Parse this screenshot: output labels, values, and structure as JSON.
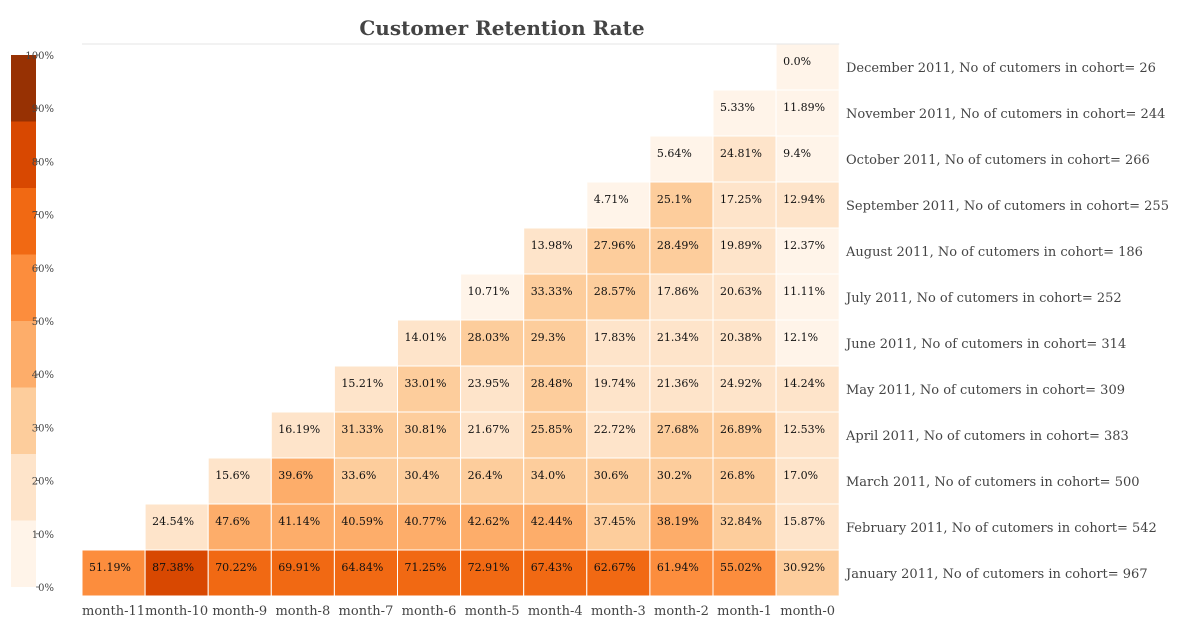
{
  "chart_data": {
    "type": "heatmap",
    "title": "Customer Retention Rate",
    "columns": [
      "month-11",
      "month-10",
      "month-9",
      "month-8",
      "month-7",
      "month-6",
      "month-5",
      "month-4",
      "month-3",
      "month-2",
      "month-1",
      "month-0"
    ],
    "rows": [
      "December 2011, No of cutomers in cohort= 26",
      "November 2011, No of cutomers in cohort= 244",
      "October 2011, No of cutomers in cohort= 266",
      "September 2011, No of cutomers in cohort= 255",
      "August 2011, No of cutomers in cohort= 186",
      "July 2011, No of cutomers in cohort= 252",
      "June 2011, No of cutomers in cohort= 314",
      "May 2011, No of cutomers in cohort= 309",
      "April 2011, No of cutomers in cohort= 383",
      "March 2011, No of cutomers in cohort= 500",
      "February 2011, No of cutomers in cohort= 542",
      "January 2011, No of cutomers in cohort= 967"
    ],
    "values": [
      [
        null,
        null,
        null,
        null,
        null,
        null,
        null,
        null,
        null,
        null,
        null,
        0.0
      ],
      [
        null,
        null,
        null,
        null,
        null,
        null,
        null,
        null,
        null,
        null,
        5.33,
        11.89
      ],
      [
        null,
        null,
        null,
        null,
        null,
        null,
        null,
        null,
        null,
        5.64,
        24.81,
        9.4
      ],
      [
        null,
        null,
        null,
        null,
        null,
        null,
        null,
        null,
        4.71,
        25.1,
        17.25,
        12.94
      ],
      [
        null,
        null,
        null,
        null,
        null,
        null,
        null,
        13.98,
        27.96,
        28.49,
        19.89,
        12.37
      ],
      [
        null,
        null,
        null,
        null,
        null,
        null,
        10.71,
        33.33,
        28.57,
        17.86,
        20.63,
        11.11
      ],
      [
        null,
        null,
        null,
        null,
        null,
        14.01,
        28.03,
        29.3,
        17.83,
        21.34,
        20.38,
        12.1
      ],
      [
        null,
        null,
        null,
        null,
        15.21,
        33.01,
        23.95,
        28.48,
        19.74,
        21.36,
        24.92,
        14.24
      ],
      [
        null,
        null,
        null,
        16.19,
        31.33,
        30.81,
        21.67,
        25.85,
        22.72,
        27.68,
        26.89,
        12.53
      ],
      [
        null,
        null,
        15.6,
        39.6,
        33.6,
        30.4,
        26.4,
        34.0,
        30.6,
        30.2,
        26.8,
        17.0
      ],
      [
        null,
        24.54,
        47.6,
        41.14,
        40.59,
        40.77,
        42.62,
        42.44,
        37.45,
        38.19,
        32.84,
        15.87
      ],
      [
        51.19,
        87.38,
        70.22,
        69.91,
        64.84,
        71.25,
        72.91,
        67.43,
        62.67,
        61.94,
        55.02,
        30.92
      ]
    ],
    "cell_labels": [
      [
        null,
        null,
        null,
        null,
        null,
        null,
        null,
        null,
        null,
        null,
        null,
        "0.0%"
      ],
      [
        null,
        null,
        null,
        null,
        null,
        null,
        null,
        null,
        null,
        null,
        "5.33%",
        "11.89%"
      ],
      [
        null,
        null,
        null,
        null,
        null,
        null,
        null,
        null,
        null,
        "5.64%",
        "24.81%",
        "9.4%"
      ],
      [
        null,
        null,
        null,
        null,
        null,
        null,
        null,
        null,
        "4.71%",
        "25.1%",
        "17.25%",
        "12.94%"
      ],
      [
        null,
        null,
        null,
        null,
        null,
        null,
        null,
        "13.98%",
        "27.96%",
        "28.49%",
        "19.89%",
        "12.37%"
      ],
      [
        null,
        null,
        null,
        null,
        null,
        null,
        "10.71%",
        "33.33%",
        "28.57%",
        "17.86%",
        "20.63%",
        "11.11%"
      ],
      [
        null,
        null,
        null,
        null,
        null,
        "14.01%",
        "28.03%",
        "29.3%",
        "17.83%",
        "21.34%",
        "20.38%",
        "12.1%"
      ],
      [
        null,
        null,
        null,
        null,
        "15.21%",
        "33.01%",
        "23.95%",
        "28.48%",
        "19.74%",
        "21.36%",
        "24.92%",
        "14.24%"
      ],
      [
        null,
        null,
        null,
        "16.19%",
        "31.33%",
        "30.81%",
        "21.67%",
        "25.85%",
        "22.72%",
        "27.68%",
        "26.89%",
        "12.53%"
      ],
      [
        null,
        null,
        "15.6%",
        "39.6%",
        "33.6%",
        "30.4%",
        "26.4%",
        "34.0%",
        "30.6%",
        "30.2%",
        "26.8%",
        "17.0%"
      ],
      [
        null,
        "24.54%",
        "47.6%",
        "41.14%",
        "40.59%",
        "40.77%",
        "42.62%",
        "42.44%",
        "37.45%",
        "38.19%",
        "32.84%",
        "15.87%"
      ],
      [
        "51.19%",
        "87.38%",
        "70.22%",
        "69.91%",
        "64.84%",
        "71.25%",
        "72.91%",
        "67.43%",
        "62.67%",
        "61.94%",
        "55.02%",
        "30.92%"
      ]
    ],
    "colorbar": {
      "range": [
        0,
        100
      ],
      "bin_edges": [
        0,
        12.5,
        25,
        37.5,
        50,
        62.5,
        75,
        87.5,
        100
      ],
      "colors": [
        "#fff4e9",
        "#fee4ca",
        "#fdcd9c",
        "#fdad6a",
        "#fc8d3d",
        "#f16913",
        "#d84801",
        "#973103"
      ],
      "ticks": [
        "0%",
        "10%",
        "20%",
        "30%",
        "40%",
        "50%",
        "60%",
        "70%",
        "80%",
        "90%",
        "100%"
      ],
      "placement": "left"
    },
    "grid": false
  }
}
